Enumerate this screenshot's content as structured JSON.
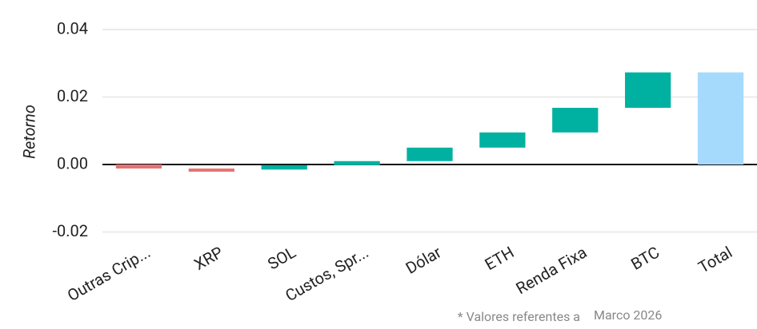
{
  "chart_data": {
    "type": "waterfall",
    "y_label": "Retorno",
    "categories": [
      "Outras Crip...",
      "XRP",
      "SOL",
      "Custos, Spr...",
      "Dólar",
      "ETH",
      "Renda Fixa",
      "BTC",
      "Total"
    ],
    "values": [
      -0.0012,
      -0.0003,
      0.0013,
      0.0012,
      0.004,
      0.0045,
      0.0073,
      0.0105,
      0.0273
    ],
    "measure": [
      "relative",
      "relative",
      "relative",
      "relative",
      "relative",
      "relative",
      "relative",
      "relative",
      "total"
    ],
    "colors": {
      "increase": "#00b1a1",
      "decrease": "#e57373",
      "total": "#a6dafc"
    },
    "ylim": [
      -0.025,
      0.04
    ],
    "yticks": [
      0.04,
      0.02,
      {
        "value": 0,
        "label": "0.00"
      },
      -0.02
    ],
    "grid": true,
    "footnote": "* Valores referentes a",
    "footnote_date": "Marco 2026"
  }
}
